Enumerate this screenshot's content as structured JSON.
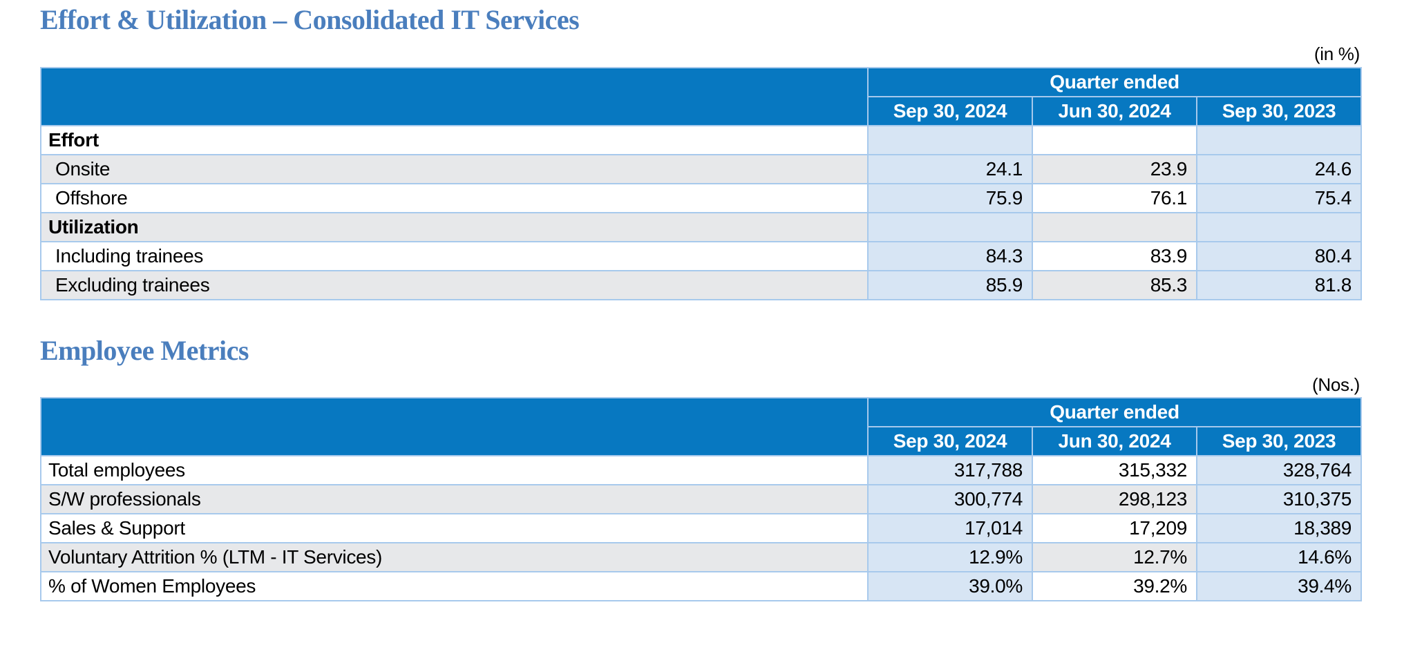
{
  "colors": {
    "header_bg": "#0778C1",
    "header_text": "#FFFFFF",
    "accent_cell_bg": "#D7E5F4",
    "band_row_bg": "#E7E8EA",
    "grid_border": "#A7C9EC",
    "title_text": "#4A7EBD"
  },
  "sections": [
    {
      "title": "Effort & Utilization – Consolidated IT Services",
      "unit_label": "(in %)",
      "table": {
        "header_group_label": "Quarter ended",
        "columns": [
          "Sep 30, 2024",
          "Jun 30, 2024",
          "Sep 30, 2023"
        ],
        "rows": [
          {
            "label": "Effort",
            "values": [
              "",
              "",
              ""
            ]
          },
          {
            "label": "Onsite",
            "values": [
              "24.1",
              "23.9",
              "24.6"
            ]
          },
          {
            "label": "Offshore",
            "values": [
              "75.9",
              "76.1",
              "75.4"
            ]
          },
          {
            "label": "Utilization",
            "values": [
              "",
              "",
              ""
            ]
          },
          {
            "label": "Including trainees",
            "values": [
              "84.3",
              "83.9",
              "80.4"
            ]
          },
          {
            "label": "Excluding trainees",
            "values": [
              "85.9",
              "85.3",
              "81.8"
            ]
          }
        ]
      }
    },
    {
      "title": "Employee Metrics",
      "unit_label": "(Nos.)",
      "table": {
        "header_group_label": "Quarter ended",
        "columns": [
          "Sep 30, 2024",
          "Jun 30, 2024",
          "Sep 30, 2023"
        ],
        "rows": [
          {
            "label": "Total employees",
            "values": [
              "317,788",
              "315,332",
              "328,764"
            ]
          },
          {
            "label": "S/W professionals",
            "values": [
              "300,774",
              "298,123",
              "310,375"
            ]
          },
          {
            "label": "Sales & Support",
            "values": [
              "17,014",
              "17,209",
              "18,389"
            ]
          },
          {
            "label": "Voluntary Attrition % (LTM - IT Services)",
            "values": [
              "12.9%",
              "12.7%",
              "14.6%"
            ]
          },
          {
            "label": "% of Women Employees",
            "values": [
              "39.0%",
              "39.2%",
              "39.4%"
            ]
          }
        ]
      }
    }
  ]
}
